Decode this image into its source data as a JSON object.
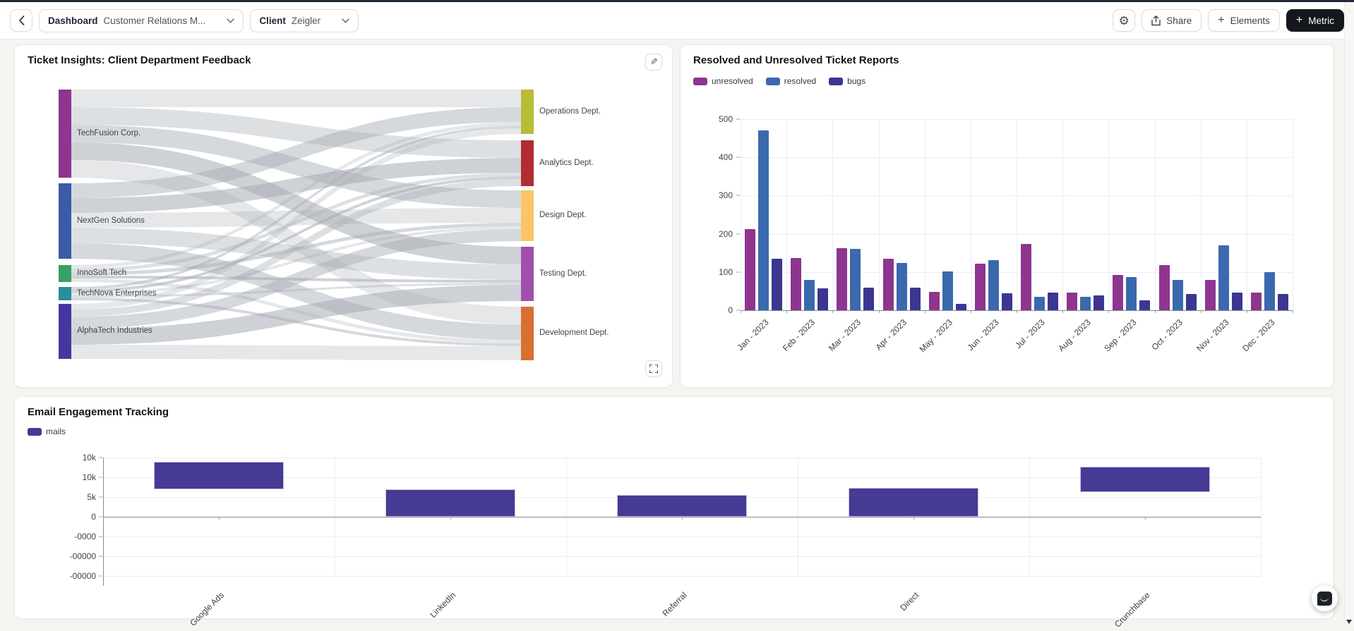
{
  "topbar": {
    "dashboard_label": "Dashboard",
    "dashboard_value": "Customer Relations M...",
    "client_label": "Client",
    "client_value": "Zeigler",
    "share_label": "Share",
    "elements_label": "Elements",
    "metric_label": "Metric"
  },
  "cards": {
    "sankey_title": "Ticket Insights: Client Department Feedback",
    "tickets_title": "Resolved and Unresolved Ticket Reports",
    "mails_title": "Email Engagement Tracking"
  },
  "chart_data": [
    {
      "id": "ticket_flow",
      "type": "sankey",
      "title": "Ticket Insights: Client Department Feedback",
      "sources": [
        {
          "label": "TechFusion Corp.",
          "color": "#8e3590",
          "value": 125
        },
        {
          "label": "NextGen Solutions",
          "color": "#3b5aa9",
          "value": 107
        },
        {
          "label": "InnoSoft Tech",
          "color": "#35a165",
          "value": 24
        },
        {
          "label": "TechNova Enterprises",
          "color": "#2b8e99",
          "value": 19
        },
        {
          "label": "AlphaTech Industries",
          "color": "#4438a0",
          "value": 78
        }
      ],
      "targets": [
        {
          "label": "Operations Dept.",
          "color": "#b9bc35",
          "value": 63
        },
        {
          "label": "Analytics Dept.",
          "color": "#b02c30",
          "value": 65
        },
        {
          "label": "Design Dept.",
          "color": "#fcc464",
          "value": 72
        },
        {
          "label": "Testing Dept.",
          "color": "#a04fad",
          "value": 77
        },
        {
          "label": "Development Dept.",
          "color": "#da7030",
          "value": 76
        }
      ],
      "links": [
        [
          25,
          25,
          25,
          25,
          25
        ],
        [
          21,
          21,
          21,
          22,
          22
        ],
        [
          5,
          5,
          5,
          4,
          5
        ],
        [
          4,
          4,
          4,
          3,
          4
        ],
        [
          8,
          10,
          17,
          23,
          20
        ]
      ]
    },
    {
      "id": "ticket_reports",
      "type": "bar",
      "title": "Resolved and Unresolved Ticket Reports",
      "categories": [
        "Jan - 2023",
        "Feb - 2023",
        "Mar - 2023",
        "Apr - 2023",
        "May - 2023",
        "Jun - 2023",
        "Jul - 2023",
        "Aug - 2023",
        "Sep - 2023",
        "Oct - 2023",
        "Nov - 2023",
        "Dec - 2023"
      ],
      "series": [
        {
          "name": "unresolved",
          "color": "#8e3590",
          "values": [
            212,
            137,
            163,
            135,
            48,
            122,
            174,
            47,
            92,
            119,
            80,
            46
          ]
        },
        {
          "name": "resolved",
          "color": "#3b69ad",
          "values": [
            470,
            80,
            161,
            124,
            102,
            132,
            36,
            36,
            86,
            80,
            170,
            99
          ]
        },
        {
          "name": "bugs",
          "color": "#3b3691",
          "values": [
            135,
            58,
            60,
            60,
            17,
            44,
            46,
            39,
            26,
            42,
            47,
            43
          ]
        }
      ],
      "ylim": [
        0,
        500
      ],
      "yticks": [
        "500",
        "400",
        "300",
        "200",
        "100",
        "0"
      ],
      "legend_position": "top-left",
      "grid": true
    },
    {
      "id": "email_engagement",
      "type": "bar",
      "title": "Email Engagement Tracking",
      "categories": [
        "Google Ads",
        "LinkedIn",
        "Referral",
        "Direct",
        "Crunchbase"
      ],
      "series": [
        {
          "name": "mails",
          "color": "#453a94",
          "ranges_k": [
            [
              6.9,
              14.0
            ],
            [
              0,
              6.9
            ],
            [
              0,
              5.5
            ],
            [
              0,
              7.3
            ],
            [
              6.2,
              12.6
            ]
          ]
        }
      ],
      "yticks": [
        "10k",
        "10k",
        "5k",
        "0",
        "-0000",
        "-00000",
        "-00000"
      ],
      "legend_position": "top-left",
      "grid": true
    }
  ]
}
